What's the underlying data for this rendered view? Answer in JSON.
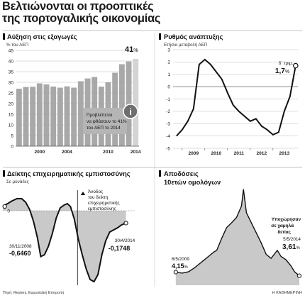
{
  "page": {
    "title_line1": "Βελτιώνονται οι προοπτικές",
    "title_line2": "της πορτογαλικής οικονομίας",
    "source": "Πηγή: Reuters, Ευρωπαϊκή Επιτροπή",
    "brand": "Η ΚΑΘΗΜΕΡΙΝΗ"
  },
  "colors": {
    "bar": "#a8a8a8",
    "bar_highlight": "#d4d4d4",
    "area": "#c9c9c9",
    "line": "#111111",
    "callout_box": "#b5b5b5",
    "callout_icon": "#6e6e6e"
  },
  "chart_data": [
    {
      "type": "bar",
      "title": "Αύξηση στις εξαγωγές",
      "subtitle": "% του ΑΕΠ",
      "x": [
        1997,
        1998,
        1999,
        2000,
        2001,
        2002,
        2003,
        2004,
        2005,
        2006,
        2007,
        2008,
        2009,
        2010,
        2011,
        2012,
        2013,
        2014
      ],
      "values": [
        27.0,
        27.8,
        27.9,
        29.5,
        29.0,
        28.0,
        27.5,
        28.1,
        27.5,
        30.5,
        31.8,
        32.5,
        28.0,
        30.0,
        34.5,
        38.5,
        39.8,
        41.0
      ],
      "highlight_index": 17,
      "x_tick_labels": [
        "2000",
        "2004",
        "2010",
        "2014"
      ],
      "x_tick_years": [
        2000,
        2004,
        2010,
        2014
      ],
      "ylim": [
        0,
        45
      ],
      "yticks": [
        0,
        5,
        10,
        15,
        20,
        25,
        30,
        35,
        40,
        45
      ],
      "end_value_label": "41",
      "end_value_unit": "%",
      "callout_lines": [
        "Προβλέπεται",
        "να φθάσουν το 41%",
        "του ΑΕΠ το 2014"
      ],
      "callout_icon": "i",
      "grid": true
    },
    {
      "type": "line",
      "title": "Ρυθμός ανάπτυξης",
      "subtitle": "Ετήσια μεταβολή ΑΕΠ",
      "x": [
        2008.75,
        2009.0,
        2009.25,
        2009.5,
        2009.75,
        2010.0,
        2010.25,
        2010.5,
        2010.75,
        2011.0,
        2011.25,
        2011.5,
        2011.75,
        2012.0,
        2012.25,
        2012.5,
        2012.75,
        2013.0,
        2013.25,
        2013.5,
        2013.75,
        2014.0
      ],
      "y": [
        -4.0,
        -3.5,
        -2.8,
        -1.8,
        1.8,
        2.2,
        1.8,
        1.2,
        0.6,
        -0.5,
        -1.5,
        -2.0,
        -2.4,
        -2.8,
        -2.6,
        -3.2,
        -3.5,
        -3.9,
        -3.7,
        -2.0,
        -0.8,
        1.7
      ],
      "x_tick_labels": [
        "2009",
        "2010",
        "2011",
        "2012",
        "2013"
      ],
      "x_tick_years": [
        2009,
        2010,
        2011,
        2012,
        2013
      ],
      "xlim": [
        2008.6,
        2014.1
      ],
      "ylim": [
        -5,
        3
      ],
      "yticks": [
        -5,
        -4,
        -3,
        -2,
        -1,
        0,
        1,
        2,
        3
      ],
      "end_note": "δ΄ τριμ.",
      "end_value_label": "1,7",
      "end_value_unit": "%",
      "grid": true
    },
    {
      "type": "area",
      "title": "Δείκτης επιχειρηματικής εμπιστοσύνης",
      "subtitle": "Σε μονάδες",
      "x": [
        2006.5,
        2006.8,
        2007.1,
        2007.4,
        2007.7,
        2007.95,
        2008.2,
        2008.45,
        2008.7,
        2008.91,
        2009.15,
        2009.4,
        2009.65,
        2009.9,
        2010.15,
        2010.4,
        2010.6,
        2010.8,
        2011.05,
        2011.3,
        2011.55,
        2011.8,
        2012.05,
        2012.3,
        2012.55,
        2012.8,
        2013.05,
        2013.3,
        2013.55,
        2013.8,
        2014.05,
        2014.33
      ],
      "y": [
        0.06,
        0.1,
        0.14,
        0.17,
        0.17,
        0.12,
        0.02,
        -0.15,
        -0.38,
        -0.646,
        -0.62,
        -0.5,
        -0.32,
        -0.1,
        0.04,
        0.08,
        0.1,
        0.06,
        -0.12,
        -0.4,
        -0.62,
        -0.82,
        -0.97,
        -1.0,
        -0.9,
        -0.62,
        -0.42,
        -0.3,
        -0.27,
        -0.24,
        -0.2,
        -0.1748
      ],
      "xlim": [
        2006.5,
        2014.35
      ],
      "ylim": [
        -1.05,
        0.35
      ],
      "zero_label": "0",
      "marker_year": 2011.25,
      "marker_label_lines": [
        "Άνοδος",
        "του δείκτη",
        "επιχειρηματικής",
        "εμπιστοσύνης"
      ],
      "low_date": "30/11/2008",
      "low_value": "-0,6460",
      "end_date": "30/4/2014",
      "end_value": "-0,1748",
      "grid": false
    },
    {
      "type": "area",
      "title_line1": "Αποδόσεις",
      "title_line2": "10ετών ομολόγων",
      "x": [
        2009.34,
        2009.6,
        2009.85,
        2010.1,
        2010.3,
        2010.5,
        2010.7,
        2010.9,
        2011.0,
        2011.2,
        2011.4,
        2011.6,
        2011.8,
        2012.0,
        2012.08,
        2012.2,
        2012.4,
        2012.6,
        2012.8,
        2013.0,
        2013.2,
        2013.45,
        2013.6,
        2013.8,
        2014.0,
        2014.15,
        2014.34
      ],
      "y": [
        4.15,
        4.0,
        4.2,
        4.8,
        5.4,
        6.0,
        6.6,
        7.2,
        7.4,
        9.2,
        10.8,
        11.5,
        12.3,
        14.0,
        16.5,
        13.0,
        11.5,
        10.0,
        8.5,
        6.8,
        6.2,
        7.4,
        6.5,
        6.0,
        5.1,
        4.2,
        3.61
      ],
      "xlim": [
        2009.0,
        2014.4
      ],
      "ylim": [
        2.2,
        17.0
      ],
      "start_date": "6/5/2009",
      "start_value": "4,15",
      "start_unit": "%",
      "end_note_lines": [
        "Υποχώρησαν",
        "σε χαμηλά",
        "8ετίας"
      ],
      "end_date": "5/5/2014",
      "end_value": "3,61",
      "end_unit": "%",
      "grid": false
    }
  ]
}
